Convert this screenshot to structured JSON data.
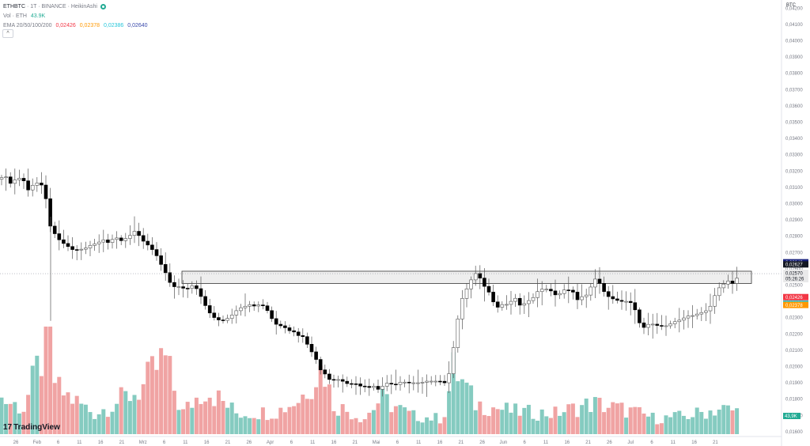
{
  "legend": {
    "symbol": "ETHBTC",
    "interval": "1T",
    "exchange": "BINANCE",
    "style": "HeikinAshi",
    "vol_label": "Vol · ETH",
    "vol_value": "43.9K",
    "ema_label": "EMA 20/50/100/200",
    "ema_values": [
      "0,02426",
      "0,02378",
      "0,02386",
      "0,02640"
    ],
    "ema_colors": [
      "#f23645",
      "#ff9800",
      "#26c6da",
      "#3949ab"
    ],
    "collapse_icon": "chevron-up-icon"
  },
  "axis_title": "BTC",
  "brand": "TradingView",
  "chart_data": {
    "type": "candlestick",
    "ylim": [
      0.0158,
      0.0425
    ],
    "y_ticks": [
      "0,04200",
      "0,04100",
      "0,04000",
      "0,03900",
      "0,03800",
      "0,03700",
      "0,03600",
      "0,03500",
      "0,03400",
      "0,03300",
      "0,03200",
      "0,03100",
      "0,03000",
      "0,02900",
      "0,02800",
      "0,02700",
      "0,02600",
      "0,02500",
      "0,02400",
      "0,02300",
      "0,02200",
      "0,02100",
      "0,02000",
      "0,01900",
      "0,01800",
      "0,01700",
      "0,01600"
    ],
    "y_tick_values": [
      0.042,
      0.041,
      0.04,
      0.039,
      0.038,
      0.037,
      0.036,
      0.035,
      0.034,
      0.033,
      0.032,
      0.031,
      0.03,
      0.029,
      0.028,
      0.027,
      0.026,
      0.025,
      0.024,
      0.023,
      0.022,
      0.021,
      0.02,
      0.019,
      0.018,
      0.017,
      0.016
    ],
    "x_ticks": [
      "26",
      "Feb",
      "6",
      "11",
      "16",
      "21",
      "Mrz",
      "6",
      "11",
      "16",
      "21",
      "26",
      "Apr",
      "6",
      "11",
      "16",
      "21",
      "Mai",
      "6",
      "11",
      "16",
      "21",
      "26",
      "Jun",
      "6",
      "11",
      "16",
      "21",
      "26",
      "Jul",
      "6",
      "11",
      "16",
      "21"
    ],
    "support_zone": [
      0.0251,
      0.02585
    ],
    "last_price": "0,02570",
    "countdown": "05:26:26",
    "price_labels": [
      {
        "text": "0,02640",
        "value": 0.0264,
        "bg": "#1a237e",
        "color": "#ffffff"
      },
      {
        "text": "0,02627",
        "value": 0.02627,
        "bg": "#131722",
        "color": "#ffffff"
      },
      {
        "text": "0,02426",
        "value": 0.02426,
        "bg": "#f23645",
        "color": "#ffffff"
      },
      {
        "text": "0,02386",
        "value": 0.02386,
        "bg": "#26c6da",
        "color": "#ffffff"
      },
      {
        "text": "0,02378",
        "value": 0.02378,
        "bg": "#ff9800",
        "color": "#ffffff"
      }
    ],
    "volume_label": "43,9K",
    "volume_label_color": "#22ab94",
    "colors": {
      "up": "#ffffff",
      "down": "#000000",
      "wick": "#555555",
      "vol_up": "#85cbc0",
      "vol_down": "#f0a3a3",
      "zone": "#e3e3e3"
    },
    "series_path": [
      [
        0,
        0.0315
      ],
      [
        6,
        0.0318
      ],
      [
        12,
        0.0312
      ],
      [
        20,
        0.0315
      ],
      [
        28,
        0.0316
      ],
      [
        36,
        0.0308
      ],
      [
        44,
        0.0313
      ],
      [
        52,
        0.0312
      ],
      [
        58,
        0.0303
      ],
      [
        64,
        0.0285
      ],
      [
        70,
        0.0281
      ],
      [
        76,
        0.0277
      ],
      [
        82,
        0.0275
      ],
      [
        88,
        0.0273
      ],
      [
        94,
        0.0271
      ],
      [
        100,
        0.0272
      ],
      [
        106,
        0.0272
      ],
      [
        112,
        0.0274
      ],
      [
        118,
        0.0275
      ],
      [
        124,
        0.0276
      ],
      [
        130,
        0.0278
      ],
      [
        136,
        0.0276
      ],
      [
        142,
        0.0278
      ],
      [
        148,
        0.0279
      ],
      [
        154,
        0.0277
      ],
      [
        160,
        0.0279
      ],
      [
        166,
        0.0281
      ],
      [
        172,
        0.0284
      ],
      [
        178,
        0.0278
      ],
      [
        184,
        0.0276
      ],
      [
        190,
        0.0273
      ],
      [
        196,
        0.027
      ],
      [
        202,
        0.0264
      ],
      [
        208,
        0.0259
      ],
      [
        214,
        0.0252
      ],
      [
        220,
        0.0249
      ],
      [
        226,
        0.0249
      ],
      [
        232,
        0.0248
      ],
      [
        238,
        0.0248
      ],
      [
        244,
        0.025
      ],
      [
        250,
        0.0247
      ],
      [
        256,
        0.0241
      ],
      [
        262,
        0.0235
      ],
      [
        268,
        0.0231
      ],
      [
        274,
        0.0229
      ],
      [
        280,
        0.0228
      ],
      [
        286,
        0.0229
      ],
      [
        292,
        0.0231
      ],
      [
        298,
        0.0234
      ],
      [
        304,
        0.0236
      ],
      [
        310,
        0.0237
      ],
      [
        316,
        0.0238
      ],
      [
        322,
        0.0237
      ],
      [
        328,
        0.0238
      ],
      [
        334,
        0.0237
      ],
      [
        340,
        0.0233
      ],
      [
        346,
        0.0227
      ],
      [
        352,
        0.0225
      ],
      [
        358,
        0.0225
      ],
      [
        364,
        0.0222
      ],
      [
        370,
        0.0222
      ],
      [
        376,
        0.0219
      ],
      [
        382,
        0.0219
      ],
      [
        388,
        0.0214
      ],
      [
        394,
        0.0209
      ],
      [
        400,
        0.0204
      ],
      [
        406,
        0.0197
      ],
      [
        412,
        0.0195
      ],
      [
        418,
        0.0191
      ],
      [
        424,
        0.0192
      ],
      [
        430,
        0.0192
      ],
      [
        436,
        0.019
      ],
      [
        442,
        0.0189
      ],
      [
        448,
        0.019
      ],
      [
        454,
        0.0188
      ],
      [
        460,
        0.0188
      ],
      [
        466,
        0.0187
      ],
      [
        472,
        0.0188
      ],
      [
        478,
        0.0186
      ],
      [
        484,
        0.0188
      ],
      [
        490,
        0.019
      ],
      [
        496,
        0.0189
      ],
      [
        502,
        0.0189
      ],
      [
        508,
        0.0191
      ],
      [
        514,
        0.019
      ],
      [
        520,
        0.019
      ],
      [
        526,
        0.019
      ],
      [
        532,
        0.019
      ],
      [
        538,
        0.0191
      ],
      [
        544,
        0.0191
      ],
      [
        550,
        0.0191
      ],
      [
        556,
        0.0191
      ],
      [
        562,
        0.019
      ],
      [
        568,
        0.0196
      ],
      [
        574,
        0.0214
      ],
      [
        580,
        0.0233
      ],
      [
        586,
        0.0245
      ],
      [
        592,
        0.0249
      ],
      [
        598,
        0.0256
      ],
      [
        604,
        0.0258
      ],
      [
        610,
        0.025
      ],
      [
        616,
        0.0248
      ],
      [
        622,
        0.0241
      ],
      [
        628,
        0.0236
      ],
      [
        634,
        0.0238
      ],
      [
        640,
        0.0238
      ],
      [
        646,
        0.024
      ],
      [
        652,
        0.0242
      ],
      [
        658,
        0.0237
      ],
      [
        664,
        0.0239
      ],
      [
        670,
        0.0241
      ],
      [
        676,
        0.0243
      ],
      [
        682,
        0.0248
      ],
      [
        688,
        0.0247
      ],
      [
        694,
        0.0248
      ],
      [
        700,
        0.0244
      ],
      [
        706,
        0.0244
      ],
      [
        712,
        0.0247
      ],
      [
        718,
        0.0247
      ],
      [
        724,
        0.0246
      ],
      [
        730,
        0.0241
      ],
      [
        736,
        0.0243
      ],
      [
        742,
        0.0244
      ],
      [
        748,
        0.025
      ],
      [
        754,
        0.0255
      ],
      [
        760,
        0.0249
      ],
      [
        766,
        0.0244
      ],
      [
        772,
        0.0242
      ],
      [
        778,
        0.0241
      ],
      [
        784,
        0.024
      ],
      [
        790,
        0.024
      ],
      [
        796,
        0.024
      ],
      [
        802,
        0.0236
      ],
      [
        808,
        0.0227
      ],
      [
        814,
        0.0224
      ],
      [
        820,
        0.0226
      ],
      [
        826,
        0.0226
      ],
      [
        832,
        0.0225
      ],
      [
        838,
        0.0225
      ],
      [
        844,
        0.0225
      ],
      [
        850,
        0.0227
      ],
      [
        856,
        0.0228
      ],
      [
        862,
        0.0229
      ],
      [
        868,
        0.0231
      ],
      [
        874,
        0.0231
      ],
      [
        880,
        0.0232
      ],
      [
        886,
        0.0233
      ],
      [
        892,
        0.0234
      ],
      [
        898,
        0.0237
      ],
      [
        904,
        0.0244
      ],
      [
        910,
        0.0249
      ],
      [
        916,
        0.0251
      ],
      [
        922,
        0.0253
      ],
      [
        928,
        0.025
      ],
      [
        934,
        0.0257
      ],
      [
        936,
        0.0257
      ]
    ],
    "volume_path": [
      [
        0,
        0.35
      ],
      [
        30,
        0.25
      ],
      [
        64,
        1.0
      ],
      [
        70,
        0.45
      ],
      [
        120,
        0.2
      ],
      [
        180,
        0.45
      ],
      [
        208,
        0.75
      ],
      [
        230,
        0.2
      ],
      [
        260,
        0.45
      ],
      [
        300,
        0.2
      ],
      [
        350,
        0.22
      ],
      [
        380,
        0.35
      ],
      [
        400,
        0.6
      ],
      [
        410,
        0.65
      ],
      [
        420,
        0.3
      ],
      [
        460,
        0.15
      ],
      [
        482,
        0.35
      ],
      [
        520,
        0.18
      ],
      [
        560,
        0.15
      ],
      [
        574,
        0.65
      ],
      [
        600,
        0.3
      ],
      [
        650,
        0.22
      ],
      [
        700,
        0.2
      ],
      [
        750,
        0.3
      ],
      [
        800,
        0.22
      ],
      [
        830,
        0.15
      ],
      [
        870,
        0.18
      ],
      [
        910,
        0.25
      ],
      [
        936,
        0.22
      ]
    ]
  }
}
